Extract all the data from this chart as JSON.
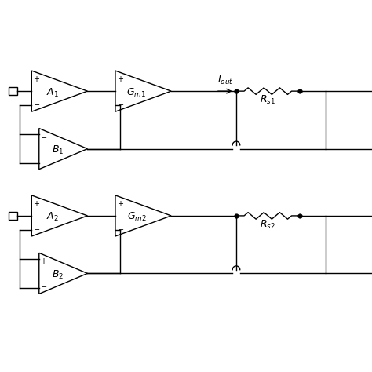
{
  "bg_color": "#ffffff",
  "line_color": "#000000",
  "fig_width": 4.74,
  "fig_height": 4.74,
  "dpi": 100
}
